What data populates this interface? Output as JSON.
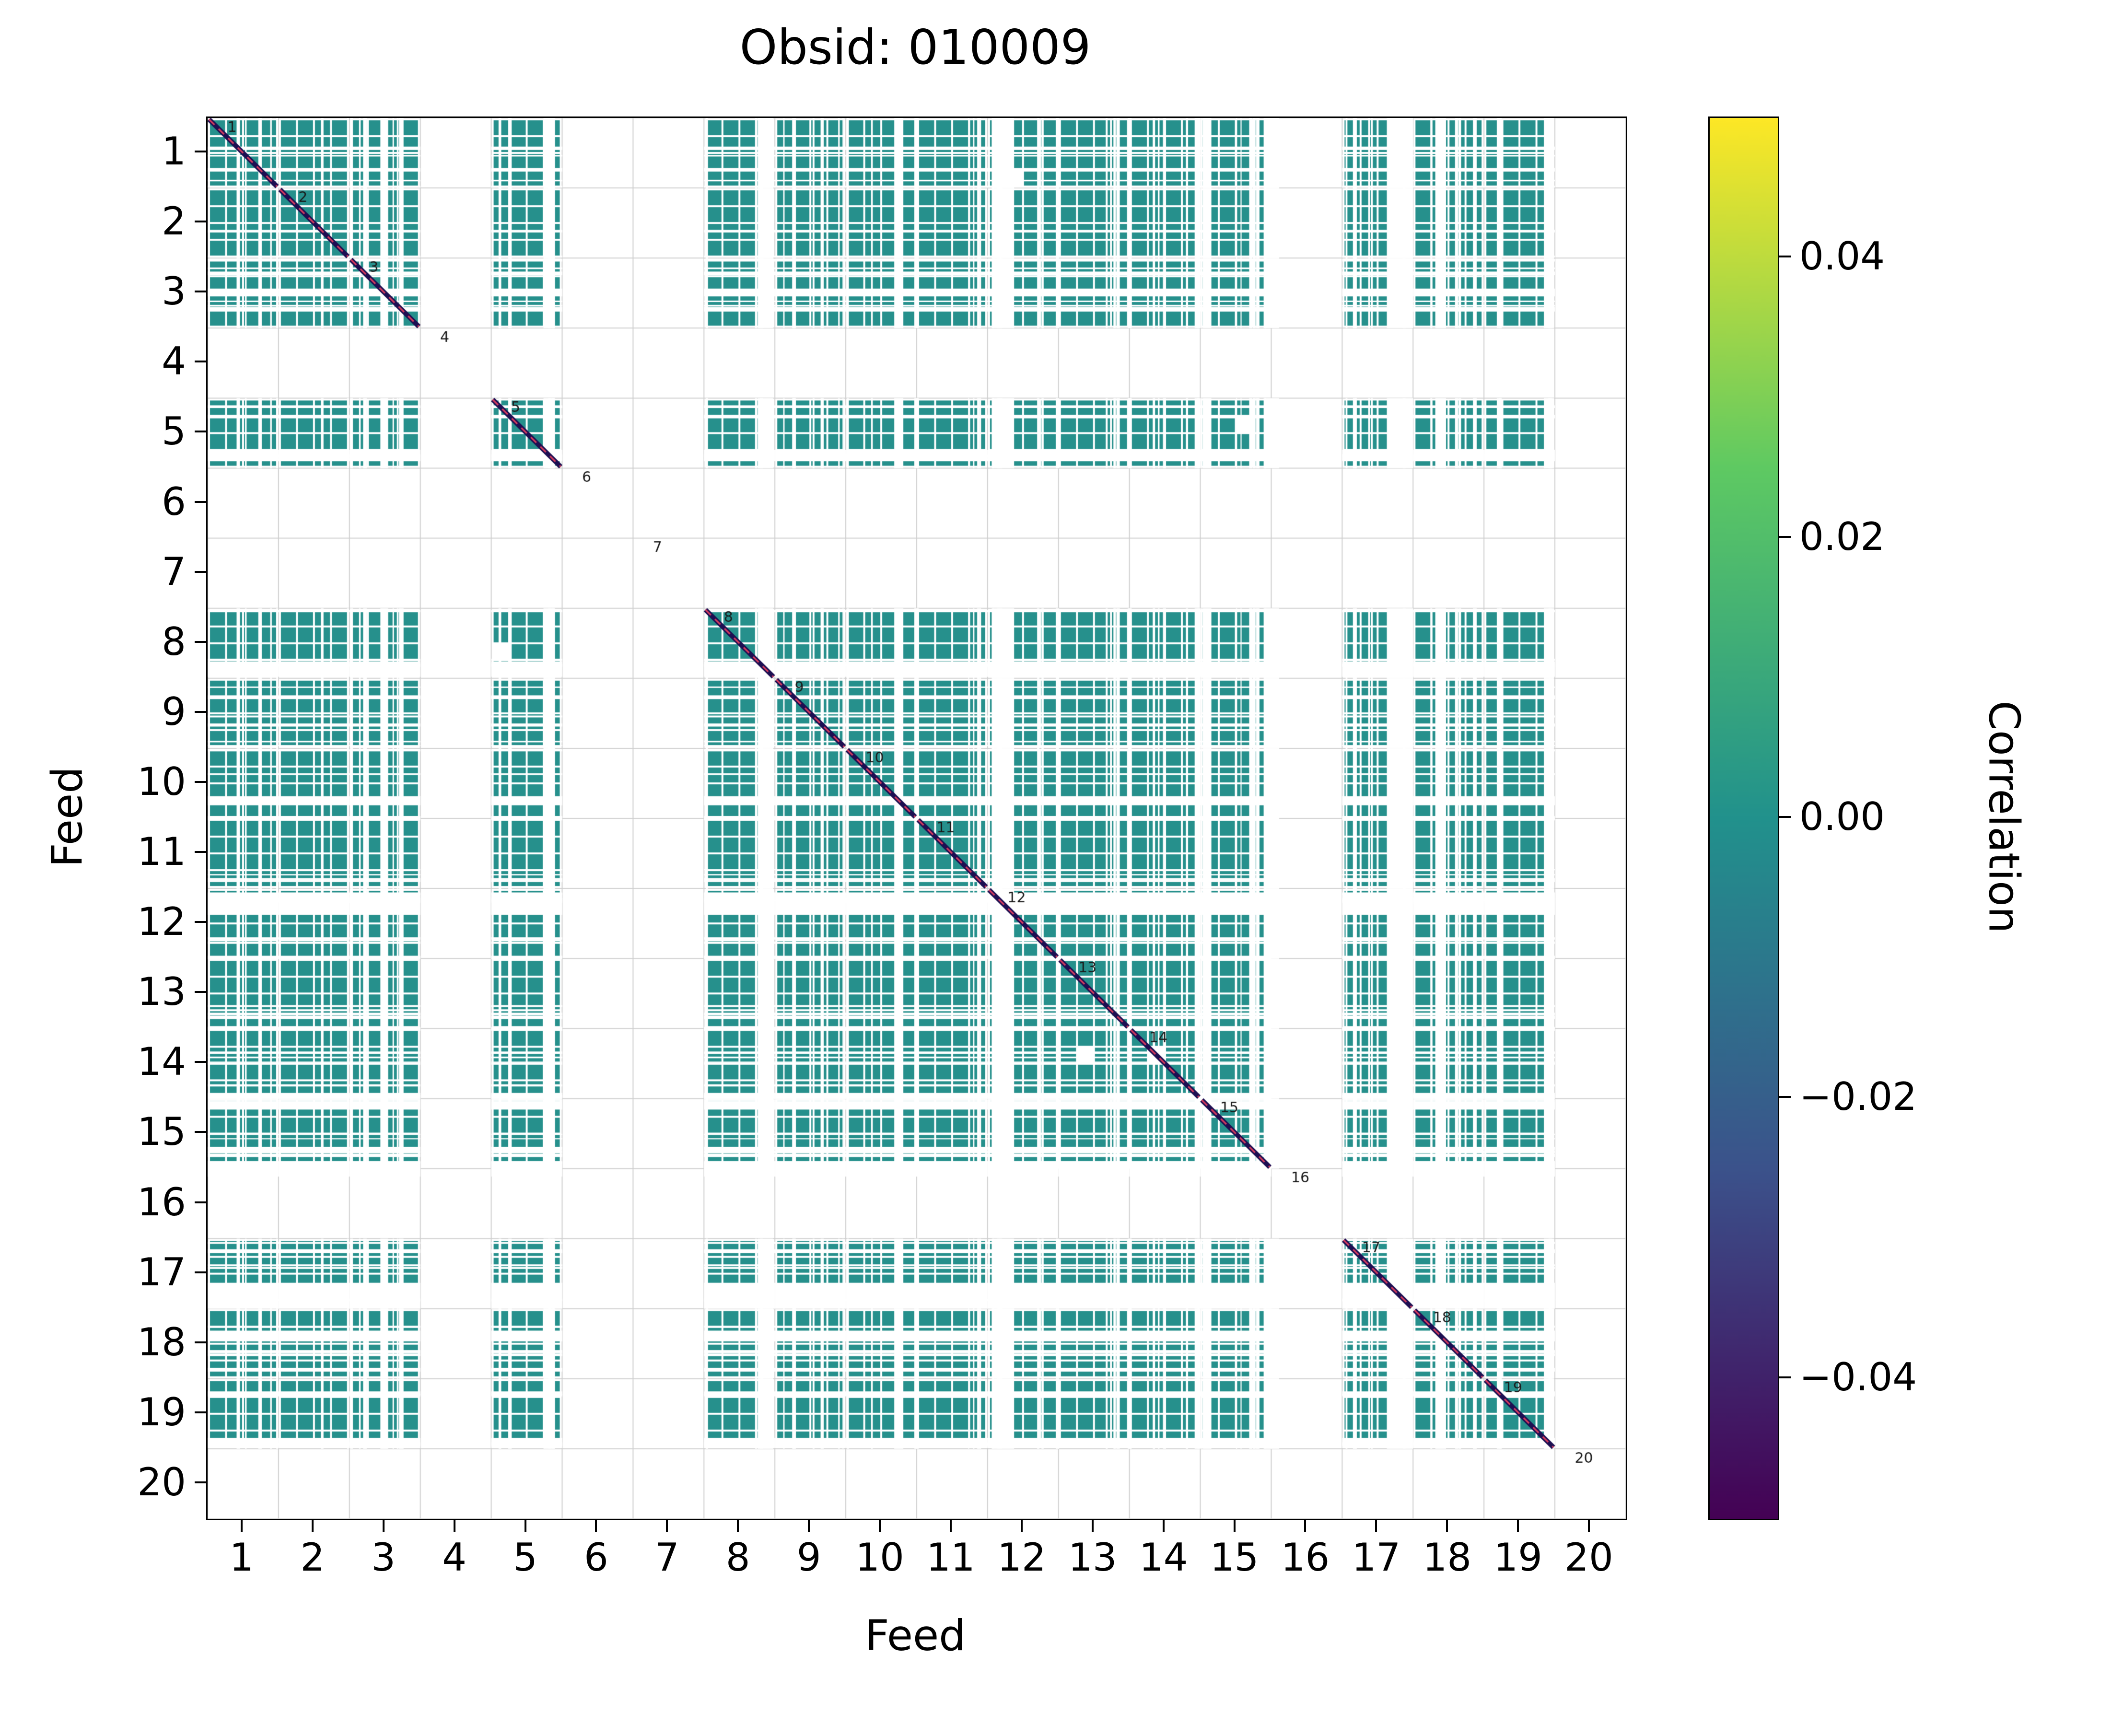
{
  "title": "Obsid: 010009",
  "axes": {
    "xlabel": "Feed",
    "ylabel": "Feed",
    "xtick_labels": [
      "1",
      "2",
      "3",
      "4",
      "5",
      "6",
      "7",
      "8",
      "9",
      "10",
      "11",
      "12",
      "13",
      "14",
      "15",
      "16",
      "17",
      "18",
      "19",
      "20"
    ],
    "ytick_labels": [
      "1",
      "2",
      "3",
      "4",
      "5",
      "6",
      "7",
      "8",
      "9",
      "10",
      "11",
      "12",
      "13",
      "14",
      "15",
      "16",
      "17",
      "18",
      "19",
      "20"
    ]
  },
  "colorbar": {
    "label": "Correlation",
    "tick_labels": [
      "0.04",
      "0.02",
      "0.00",
      "−0.02",
      "−0.04"
    ],
    "tick_values": [
      0.04,
      0.02,
      0.0,
      -0.02,
      -0.04
    ],
    "vmin": -0.05,
    "vmax": 0.05,
    "colormap": "viridis",
    "gradient_stops_top_to_bottom": [
      "#fde725",
      "#5ec962",
      "#21918c",
      "#3b528b",
      "#440154"
    ]
  },
  "chart_data": {
    "type": "heatmap",
    "title": "Obsid: 010009",
    "xlabel": "Feed",
    "ylabel": "Feed",
    "feeds": [
      1,
      2,
      3,
      4,
      5,
      6,
      7,
      8,
      9,
      10,
      11,
      12,
      13,
      14,
      15,
      16,
      17,
      18,
      19,
      20
    ],
    "active_feeds": [
      1,
      2,
      3,
      5,
      8,
      9,
      10,
      11,
      12,
      13,
      14,
      15,
      17,
      18,
      19
    ],
    "missing_feeds": [
      4,
      6,
      7,
      16,
      20
    ],
    "diagonal_labels": [
      "1",
      "2",
      "3",
      "4",
      "5",
      "6",
      "7",
      "8",
      "9",
      "10",
      "11",
      "12",
      "13",
      "14",
      "15",
      "16",
      "17",
      "18",
      "19",
      "20"
    ],
    "off_diagonal_correlation_approx": 0.0,
    "value_range": [
      -0.05,
      0.05
    ],
    "cell_color": "#26908c",
    "diagonal_line_color": "#1d0f52",
    "diagonal_dash_color": "#d23a5e",
    "grid_color": "#d0d0d0",
    "annotation_color": "#1a1a1a",
    "sub_blocks_per_feed": 4,
    "flagged_ranges": {
      "17": [
        0.63,
        1.0
      ]
    },
    "noise_seed": 1009
  }
}
